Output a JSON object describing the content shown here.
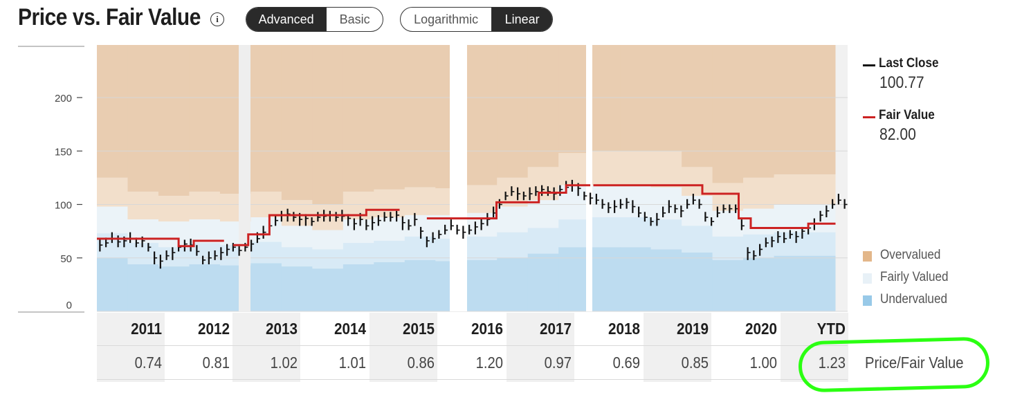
{
  "header": {
    "title": "Price vs. Fair Value",
    "info_icon": "info-icon",
    "mode_toggle": [
      {
        "label": "Advanced",
        "active": true
      },
      {
        "label": "Basic",
        "active": false
      }
    ],
    "scale_toggle": [
      {
        "label": "Logarithmic",
        "active": false
      },
      {
        "label": "Linear",
        "active": true
      }
    ]
  },
  "legend": {
    "last_close_label": "Last Close",
    "last_close_value": "100.77",
    "fair_value_label": "Fair Value",
    "fair_value_value": "82.00",
    "bands": [
      {
        "label": "Overvalued",
        "color": "#e3b78a"
      },
      {
        "label": "Fairly Valued",
        "color": "#e8f1f7"
      },
      {
        "label": "Undervalued",
        "color": "#98c9e8"
      }
    ]
  },
  "table": {
    "years": [
      "2011",
      "2012",
      "2013",
      "2014",
      "2015",
      "2016",
      "2017",
      "2018",
      "2019",
      "2020",
      "YTD"
    ],
    "ratios": [
      "0.74",
      "0.81",
      "1.02",
      "1.01",
      "0.86",
      "1.20",
      "0.97",
      "0.69",
      "0.85",
      "1.00",
      "1.23"
    ],
    "row_label": "Price/Fair Value"
  },
  "colors": {
    "fair_value_line": "#cc2222",
    "price_bars": "#111111",
    "overvalued_dark": "#e9cdb1",
    "overvalued_light": "#f2dfcb",
    "fairly_valued": "#ebf3f8",
    "undervalued_light": "#d8eaf6",
    "undervalued_dark": "#bddcf0",
    "highlight": "#2bff12"
  },
  "chart_data": {
    "type": "line",
    "y_ticks": [
      "200",
      "150",
      "100",
      "50",
      "0"
    ],
    "ylim": [
      0,
      240
    ],
    "x": [
      "2011",
      "2012",
      "2013",
      "2014",
      "2015",
      "2016",
      "2017",
      "2018",
      "2019",
      "2020",
      "YTD"
    ],
    "gaps": [
      "2012-2013",
      "2015-2016",
      "2017-2018"
    ],
    "series": [
      {
        "name": "Fair Value",
        "segments": [
          {
            "t0": 0.0,
            "t1": 1.35,
            "v": 68
          },
          {
            "t0": 1.35,
            "t1": 1.6,
            "v": 61
          },
          {
            "t0": 1.6,
            "t1": 2.1,
            "v": 66
          },
          {
            "t0": 2.25,
            "t1": 2.5,
            "v": 62
          },
          {
            "t0": 2.5,
            "t1": 2.85,
            "v": 72
          },
          {
            "t0": 2.85,
            "t1": 4.45,
            "v": 90
          },
          {
            "t0": 4.45,
            "t1": 5.0,
            "v": 95
          },
          {
            "t0": 5.45,
            "t1": 6.0,
            "v": 87
          },
          {
            "t0": 6.0,
            "t1": 6.6,
            "v": 87
          },
          {
            "t0": 6.6,
            "t1": 7.3,
            "v": 102
          },
          {
            "t0": 7.3,
            "t1": 7.75,
            "v": 111
          },
          {
            "t0": 7.75,
            "t1": 8.15,
            "v": 118
          },
          {
            "t0": 8.2,
            "t1": 10.0,
            "v": 118
          },
          {
            "t0": 10.0,
            "t1": 10.6,
            "v": 110
          },
          {
            "t0": 10.6,
            "t1": 10.8,
            "v": 87
          },
          {
            "t0": 10.8,
            "t1": 11.75,
            "v": 78
          },
          {
            "t0": 11.75,
            "t1": 12.2,
            "v": 82
          }
        ]
      },
      {
        "name": "Last Close",
        "points": [
          [
            0.05,
            62
          ],
          [
            0.15,
            64
          ],
          [
            0.25,
            68
          ],
          [
            0.35,
            65
          ],
          [
            0.45,
            66
          ],
          [
            0.55,
            68
          ],
          [
            0.65,
            64
          ],
          [
            0.75,
            66
          ],
          [
            0.85,
            60
          ],
          [
            0.95,
            50
          ],
          [
            1.05,
            47
          ],
          [
            1.15,
            52
          ],
          [
            1.25,
            55
          ],
          [
            1.35,
            60
          ],
          [
            1.45,
            63
          ],
          [
            1.55,
            62
          ],
          [
            1.65,
            56
          ],
          [
            1.75,
            48
          ],
          [
            1.85,
            50
          ],
          [
            1.95,
            52
          ],
          [
            2.05,
            55
          ],
          [
            2.15,
            58
          ],
          [
            2.25,
            60
          ],
          [
            2.35,
            57
          ],
          [
            2.45,
            60
          ],
          [
            2.55,
            63
          ],
          [
            2.65,
            68
          ],
          [
            2.75,
            74
          ],
          [
            2.85,
            80
          ],
          [
            2.95,
            85
          ],
          [
            3.05,
            90
          ],
          [
            3.15,
            91
          ],
          [
            3.25,
            88
          ],
          [
            3.35,
            86
          ],
          [
            3.45,
            87
          ],
          [
            3.55,
            84
          ],
          [
            3.65,
            88
          ],
          [
            3.75,
            89
          ],
          [
            3.85,
            90
          ],
          [
            3.95,
            88
          ],
          [
            4.05,
            89
          ],
          [
            4.15,
            87
          ],
          [
            4.25,
            82
          ],
          [
            4.35,
            86
          ],
          [
            4.45,
            80
          ],
          [
            4.55,
            83
          ],
          [
            4.65,
            85
          ],
          [
            4.75,
            88
          ],
          [
            4.85,
            88
          ],
          [
            4.95,
            90
          ],
          [
            5.05,
            83
          ],
          [
            5.15,
            80
          ],
          [
            5.25,
            86
          ],
          [
            5.35,
            75
          ],
          [
            5.45,
            66
          ],
          [
            5.55,
            68
          ],
          [
            5.65,
            72
          ],
          [
            5.75,
            76
          ],
          [
            5.85,
            80
          ],
          [
            5.95,
            76
          ],
          [
            6.05,
            74
          ],
          [
            6.15,
            76
          ],
          [
            6.25,
            79
          ],
          [
            6.35,
            82
          ],
          [
            6.45,
            86
          ],
          [
            6.55,
            92
          ],
          [
            6.65,
            100
          ],
          [
            6.75,
            108
          ],
          [
            6.85,
            112
          ],
          [
            6.95,
            110
          ],
          [
            7.05,
            108
          ],
          [
            7.15,
            110
          ],
          [
            7.25,
            112
          ],
          [
            7.35,
            114
          ],
          [
            7.45,
            112
          ],
          [
            7.55,
            110
          ],
          [
            7.65,
            114
          ],
          [
            7.75,
            116
          ],
          [
            7.85,
            118
          ],
          [
            7.95,
            115
          ],
          [
            8.05,
            108
          ],
          [
            8.15,
            106
          ],
          [
            8.25,
            104
          ],
          [
            8.35,
            100
          ],
          [
            8.45,
            97
          ],
          [
            8.55,
            98
          ],
          [
            8.65,
            100
          ],
          [
            8.75,
            102
          ],
          [
            8.85,
            98
          ],
          [
            8.95,
            92
          ],
          [
            9.05,
            88
          ],
          [
            9.15,
            84
          ],
          [
            9.25,
            86
          ],
          [
            9.35,
            92
          ],
          [
            9.45,
            98
          ],
          [
            9.55,
            96
          ],
          [
            9.65,
            94
          ],
          [
            9.75,
            100
          ],
          [
            9.85,
            104
          ],
          [
            9.95,
            100
          ],
          [
            10.05,
            88
          ],
          [
            10.15,
            84
          ],
          [
            10.25,
            92
          ],
          [
            10.35,
            96
          ],
          [
            10.45,
            96
          ],
          [
            10.55,
            96
          ],
          [
            10.65,
            80
          ],
          [
            10.75,
            55
          ],
          [
            10.85,
            52
          ],
          [
            10.95,
            58
          ],
          [
            11.05,
            64
          ],
          [
            11.15,
            66
          ],
          [
            11.25,
            70
          ],
          [
            11.35,
            68
          ],
          [
            11.45,
            72
          ],
          [
            11.55,
            70
          ],
          [
            11.65,
            75
          ],
          [
            11.75,
            78
          ],
          [
            11.85,
            82
          ],
          [
            11.95,
            90
          ],
          [
            12.05,
            94
          ],
          [
            12.15,
            100
          ],
          [
            12.25,
            104
          ],
          [
            12.35,
            100
          ]
        ]
      }
    ],
    "bands": {
      "upper": [
        125,
        112,
        108,
        112,
        110,
        112,
        104,
        100,
        112,
        114,
        116,
        115,
        118,
        125,
        135,
        148,
        150,
        150,
        150,
        135,
        120,
        125,
        128,
        128
      ],
      "fair_high": [
        98,
        86,
        84,
        86,
        84,
        88,
        80,
        76,
        86,
        88,
        90,
        90,
        92,
        98,
        104,
        118,
        118,
        118,
        116,
        108,
        94,
        96,
        100,
        100
      ],
      "fair_low": [
        73,
        64,
        60,
        64,
        62,
        65,
        60,
        58,
        64,
        66,
        70,
        68,
        70,
        74,
        78,
        86,
        88,
        88,
        86,
        80,
        70,
        72,
        74,
        74
      ],
      "under_high": [
        50,
        44,
        42,
        44,
        43,
        45,
        42,
        40,
        44,
        46,
        48,
        47,
        48,
        50,
        54,
        60,
        60,
        60,
        58,
        55,
        48,
        50,
        52,
        52
      ]
    }
  }
}
